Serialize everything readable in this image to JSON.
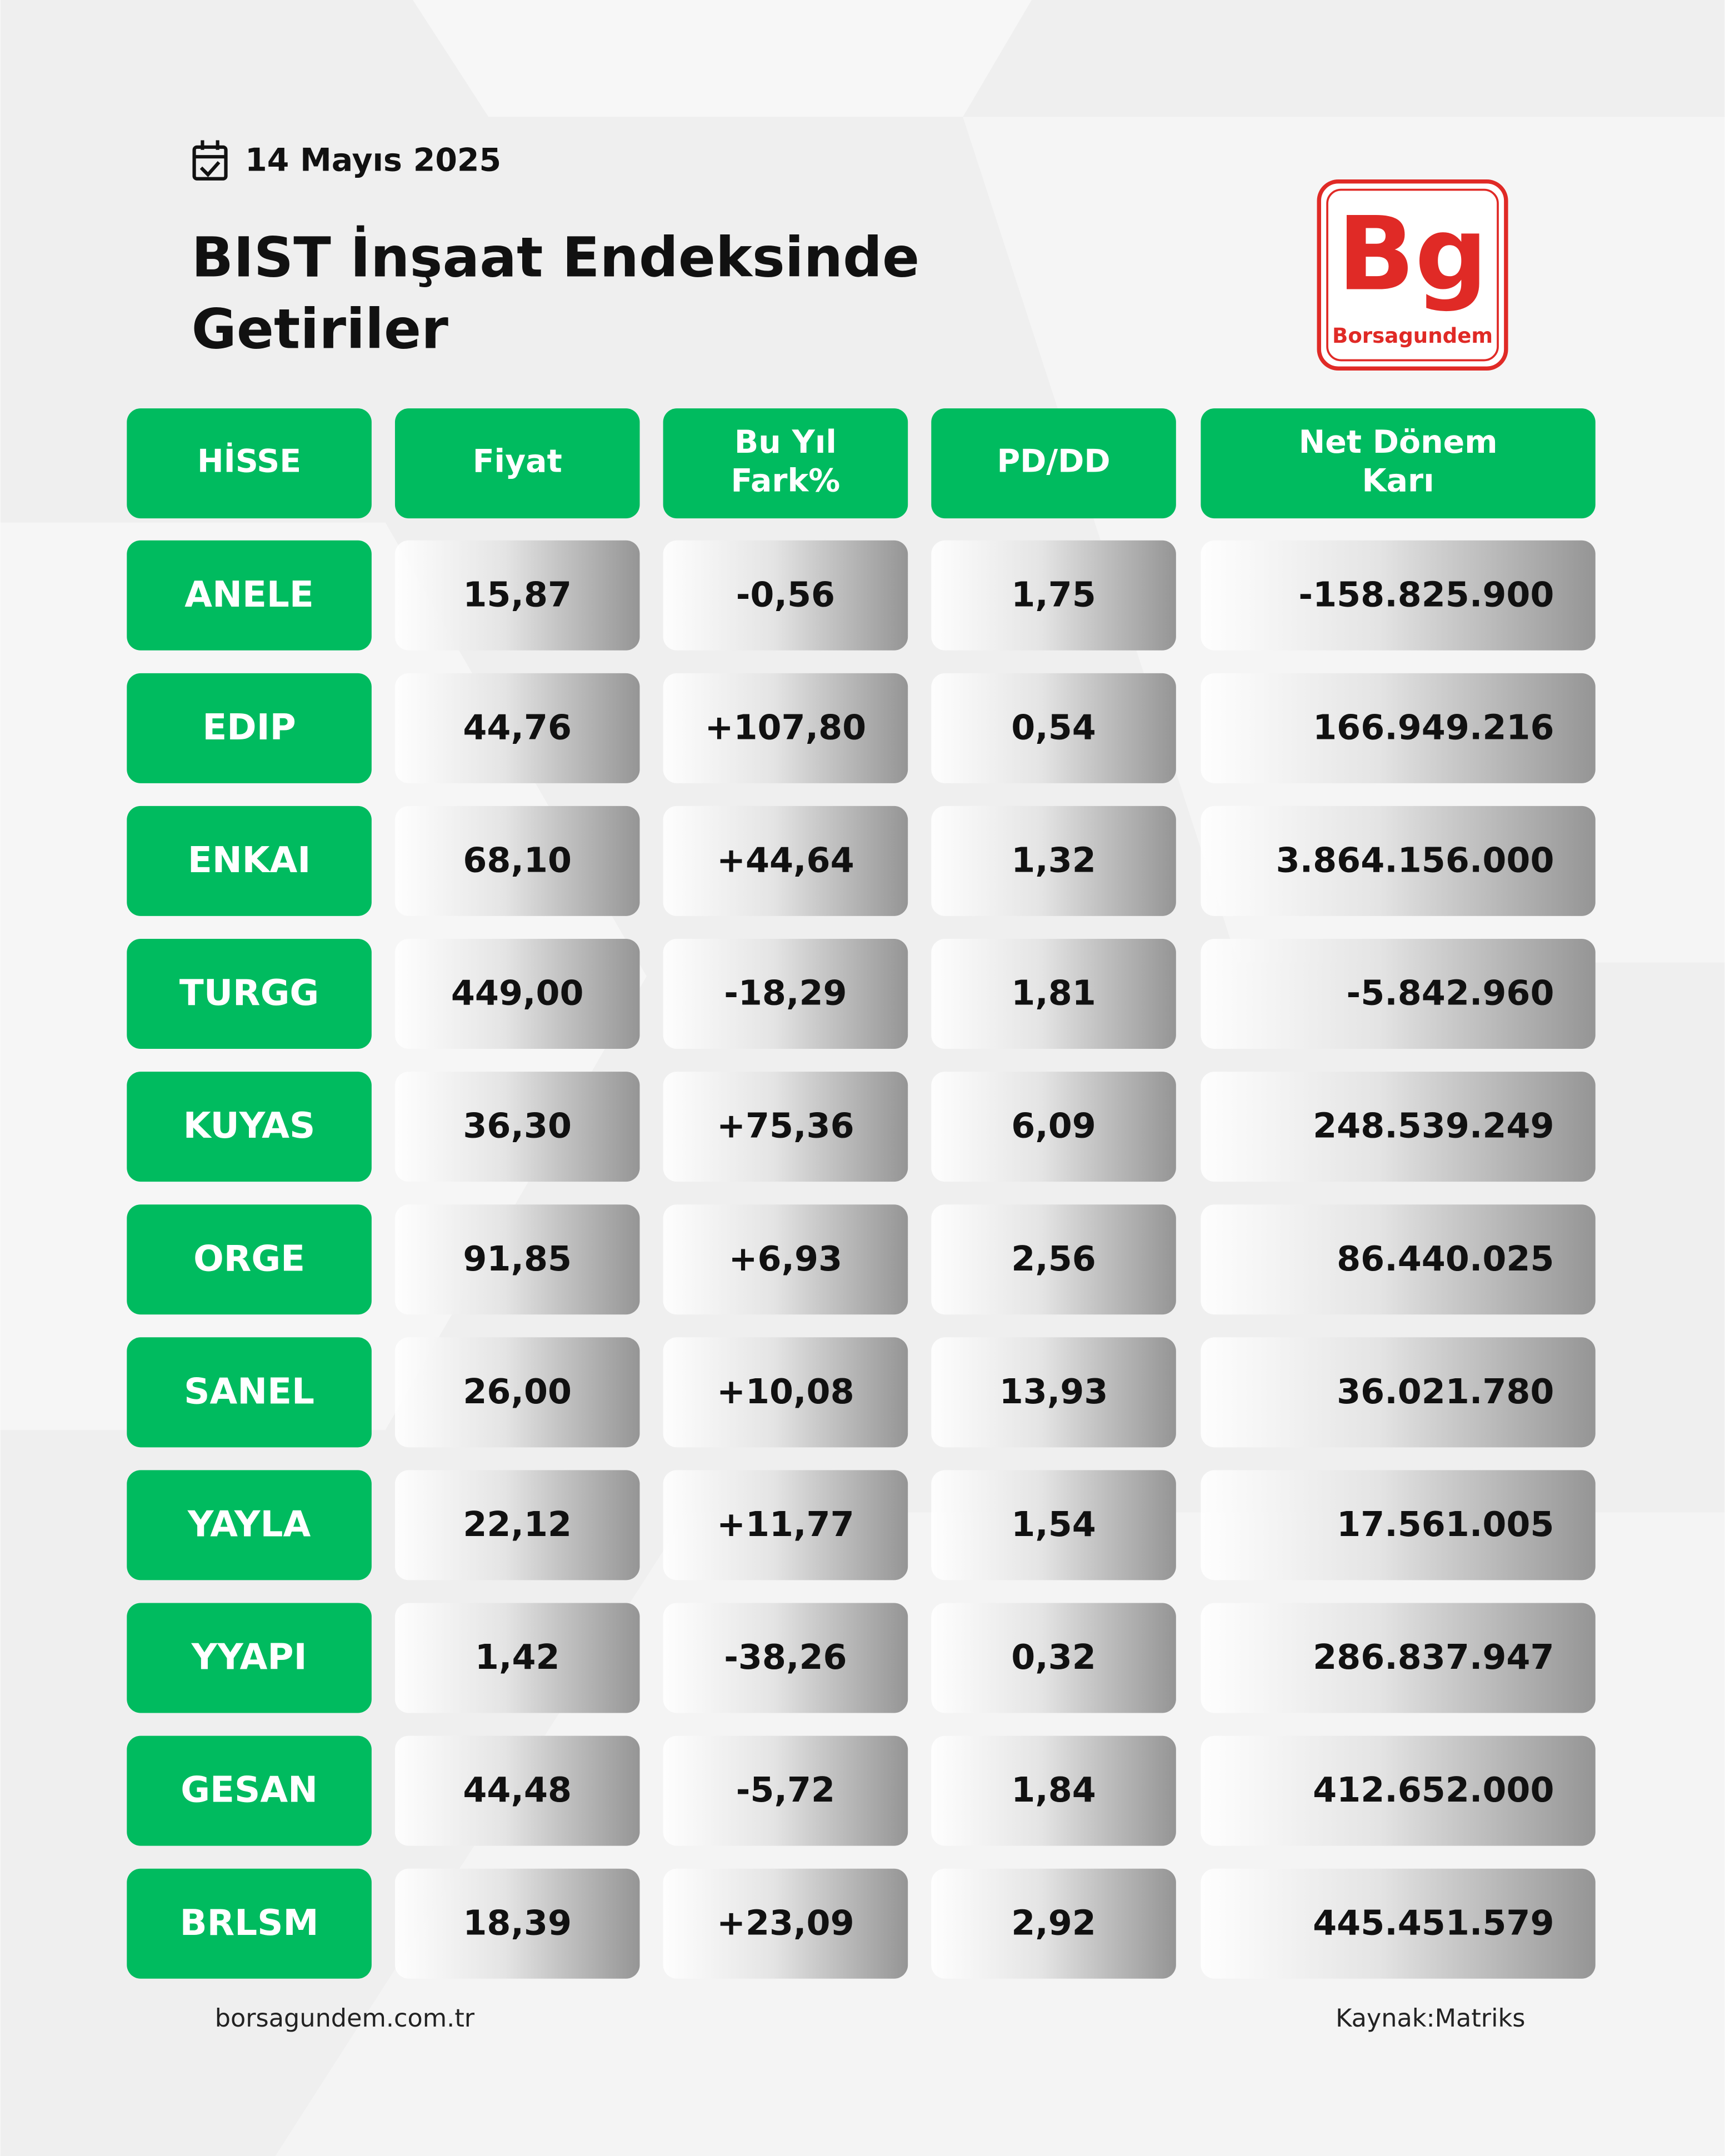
{
  "date": "14 Mayıs 2025",
  "title": [
    "BIST İnşaat Endeksinde",
    "Getiriler"
  ],
  "logo": {
    "mark": "Bg",
    "name": "Borsagundem"
  },
  "table": {
    "headers": [
      [
        "HİSSE"
      ],
      [
        "Fiyat"
      ],
      [
        "Bu Yıl",
        "Fark%"
      ],
      [
        "PD/DD"
      ],
      [
        "Net Dönem",
        "Karı"
      ]
    ],
    "rows": [
      [
        "ANELE",
        "15,87",
        "-0,56",
        "1,75",
        "-158.825.900"
      ],
      [
        "EDIP",
        "44,76",
        "+107,80",
        "0,54",
        "166.949.216"
      ],
      [
        "ENKAI",
        "68,10",
        "+44,64",
        "1,32",
        "3.864.156.000"
      ],
      [
        "TURGG",
        "449,00",
        "-18,29",
        "1,81",
        "-5.842.960"
      ],
      [
        "KUYAS",
        "36,30",
        "+75,36",
        "6,09",
        "248.539.249"
      ],
      [
        "ORGE",
        "91,85",
        "+6,93",
        "2,56",
        "86.440.025"
      ],
      [
        "SANEL",
        "26,00",
        "+10,08",
        "13,93",
        "36.021.780"
      ],
      [
        "YAYLA",
        "22,12",
        "+11,77",
        "1,54",
        "17.561.005"
      ],
      [
        "YYAPI",
        "1,42",
        "-38,26",
        "0,32",
        "286.837.947"
      ],
      [
        "GESAN",
        "44,48",
        "-5,72",
        "1,84",
        "412.652.000"
      ],
      [
        "BRLSM",
        "18,39",
        "+23,09",
        "2,92",
        "445.451.579"
      ]
    ]
  },
  "footer": {
    "website": "borsagundem.com.tr",
    "source": "Kaynak:Matriks"
  }
}
